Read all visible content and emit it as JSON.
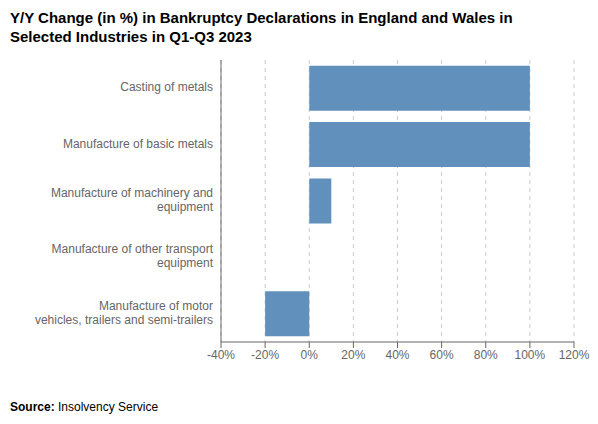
{
  "chart_data": {
    "type": "bar",
    "title": "Y/Y Change (in %) in Bankruptcy Declarations in England and Wales in\nSelected Industries in Q1-Q3 2023",
    "categories": [
      "Casting of metals",
      "Manufacture of basic metals",
      "Manufacture of machinery and\nequipment",
      "Manufacture of other transport\nequipment",
      "Manufacture of motor\nvehicles, trailers and semi-trailers"
    ],
    "values": [
      100,
      100,
      10,
      0,
      -20
    ],
    "color": "#6090bb",
    "orientation": "horizontal",
    "xlim": [
      -40,
      120
    ],
    "xticks": [
      {
        "value": -40,
        "label": "-40%"
      },
      {
        "value": -20,
        "label": "-20%"
      },
      {
        "value": 0,
        "label": "0%"
      },
      {
        "value": 20,
        "label": "20%"
      },
      {
        "value": 40,
        "label": "40%"
      },
      {
        "value": 60,
        "label": "60%"
      },
      {
        "value": 80,
        "label": "80%"
      },
      {
        "value": 100,
        "label": "100%"
      },
      {
        "value": 120,
        "label": "120%"
      }
    ],
    "grid": true,
    "annotations": [
      "Source:",
      " Insolvency Service"
    ]
  }
}
